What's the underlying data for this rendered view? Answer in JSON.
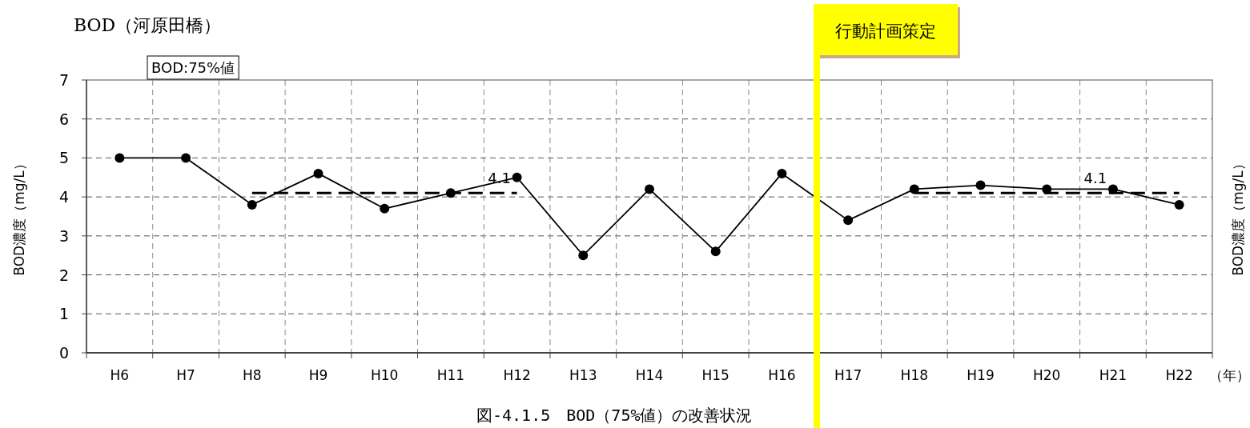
{
  "chart_data": {
    "type": "line",
    "title": "BOD（河原田橋）",
    "xlabel": "（年）",
    "ylabel": "BOD濃度（mg/L）",
    "y2label": "BOD濃度（mg/L）",
    "categories": [
      "H6",
      "H7",
      "H8",
      "H9",
      "H10",
      "H11",
      "H12",
      "H13",
      "H14",
      "H15",
      "H16",
      "H17",
      "H18",
      "H19",
      "H20",
      "H21",
      "H22"
    ],
    "series": [
      {
        "color": "#000000",
        "marker": "circle",
        "line_style": "solid",
        "values": [
          5.0,
          5.0,
          3.8,
          4.6,
          3.7,
          4.1,
          4.5,
          2.5,
          4.2,
          2.6,
          4.6,
          3.4,
          4.2,
          4.3,
          4.2,
          4.2,
          3.8
        ]
      },
      {
        "color": "#000000",
        "marker": "none",
        "line_style": "dashed",
        "values": [
          null,
          null,
          4.1,
          4.1,
          4.1,
          4.1,
          4.1,
          null,
          null,
          null,
          null,
          null,
          null,
          null,
          null,
          null,
          null
        ]
      },
      {
        "color": "#000000",
        "marker": "none",
        "line_style": "dashed",
        "values": [
          null,
          null,
          null,
          null,
          null,
          null,
          null,
          null,
          null,
          null,
          null,
          null,
          4.1,
          4.1,
          4.1,
          4.1,
          4.1
        ]
      }
    ],
    "ylim": [
      0,
      7
    ],
    "yticks": [
      0,
      1,
      2,
      3,
      4,
      5,
      6,
      7
    ],
    "grid": true,
    "annotations": [
      {
        "text": "4.1",
        "x": "H12",
        "y": 4.1
      },
      {
        "text": "4.1",
        "x": "H21",
        "y": 4.1
      },
      "BOD:75%値",
      "図-4.1.5　BOD（75%値）の改善状況",
      "行動計画策定"
    ]
  }
}
